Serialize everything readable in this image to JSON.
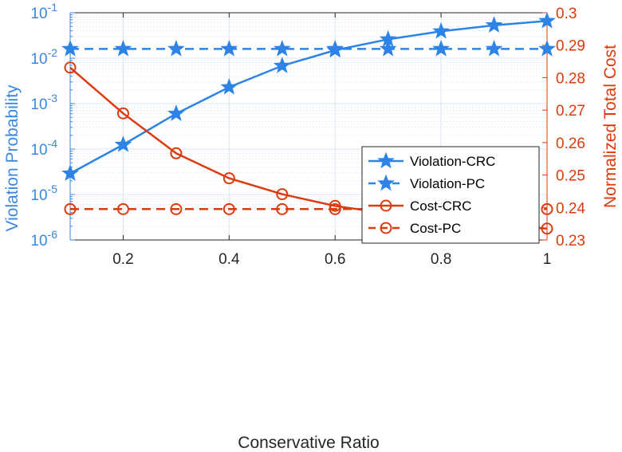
{
  "chart_data": {
    "type": "line",
    "title": "",
    "xlabel": "Conservative Ratio",
    "ylabel_left": "Violation Probability",
    "ylabel_right": "Normalized Total Cost",
    "x": [
      0.1,
      0.2,
      0.3,
      0.4,
      0.5,
      0.6,
      0.7,
      0.8,
      0.9,
      1.0
    ],
    "xlim": [
      0.1,
      1.0
    ],
    "x_ticks": [
      0.2,
      0.4,
      0.6,
      0.8,
      1.0
    ],
    "x_tick_labels": [
      "0.2",
      "0.4",
      "0.6",
      "0.8",
      "1"
    ],
    "y_left_scale": "log",
    "y_left_lim": [
      1e-06,
      0.1
    ],
    "y_left_tick_exponents": [
      -6,
      -5,
      -4,
      -3,
      -2,
      -1
    ],
    "y_right_lim": [
      0.23,
      0.3
    ],
    "y_right_ticks": [
      0.23,
      0.24,
      0.25,
      0.26,
      0.27,
      0.28,
      0.29,
      0.3
    ],
    "y_right_tick_labels": [
      "0.23",
      "0.24",
      "0.25",
      "0.26",
      "0.27",
      "0.28",
      "0.29",
      "0.3"
    ],
    "grid": true,
    "legend_position": "right",
    "colors": {
      "left_axis": "#3a86e0",
      "right_axis": "#dd3a0e",
      "grid": "#d9e4ef"
    },
    "series": [
      {
        "name": "Violation-CRC",
        "axis": "left",
        "line": "solid",
        "marker": "star",
        "color": "#2d83e6",
        "values": [
          2.9e-05,
          0.000125,
          0.0006,
          0.0023,
          0.0068,
          0.015,
          0.026,
          0.039,
          0.053,
          0.066
        ]
      },
      {
        "name": "Violation-PC",
        "axis": "left",
        "line": "dashed",
        "marker": "star",
        "color": "#2d83e6",
        "values": [
          0.016,
          0.016,
          0.016,
          0.016,
          0.016,
          0.016,
          0.016,
          0.016,
          0.016,
          0.016
        ]
      },
      {
        "name": "Cost-CRC",
        "axis": "right",
        "line": "solid",
        "marker": "circle",
        "color": "#dd3a0e",
        "values": [
          0.2831,
          0.269,
          0.2567,
          0.249,
          0.2441,
          0.2405,
          0.2381,
          0.2363,
          0.2347,
          0.2335
        ]
      },
      {
        "name": "Cost-PC",
        "axis": "right",
        "line": "dashed",
        "marker": "circle",
        "color": "#dd3a0e",
        "values": [
          0.2395,
          0.2395,
          0.2395,
          0.2395,
          0.2395,
          0.2395,
          0.2395,
          0.2395,
          0.2395,
          0.2395
        ]
      }
    ]
  }
}
